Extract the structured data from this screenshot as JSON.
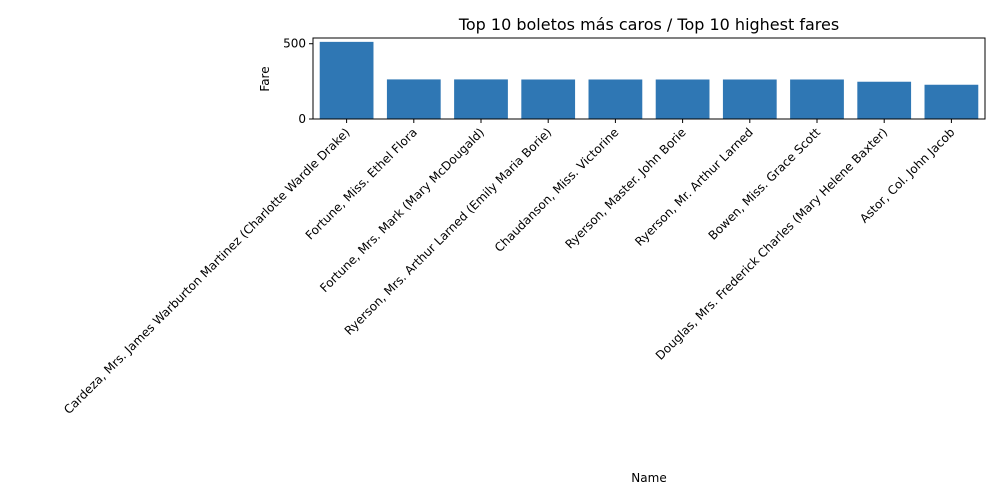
{
  "chart_data": {
    "type": "bar",
    "title": "Top 10 boletos más caros / Top 10 highest fares",
    "xlabel": "Name",
    "ylabel": "Fare",
    "categories": [
      "Cardeza, Mrs. James Warburton Martinez (Charlotte Wardle Drake)",
      "Fortune, Miss. Ethel Flora",
      "Fortune, Mrs. Mark (Mary McDougald)",
      "Ryerson, Mrs. Arthur Larned (Emily Maria Borie)",
      "Chaudanson, Miss. Victorine",
      "Ryerson, Master. John Borie",
      "Ryerson, Mr. Arthur Larned",
      "Bowen, Miss. Grace Scott",
      "Douglas, Mrs. Frederick Charles (Mary Helene Baxter)",
      "Astor, Col. John Jacob"
    ],
    "values": [
      512.33,
      263.0,
      263.0,
      262.38,
      262.38,
      262.38,
      262.38,
      262.38,
      247.52,
      227.53
    ],
    "yticks": [
      0,
      500
    ],
    "ylim": [
      0,
      538
    ],
    "grid": false,
    "bar_color": "#2f77b4"
  }
}
